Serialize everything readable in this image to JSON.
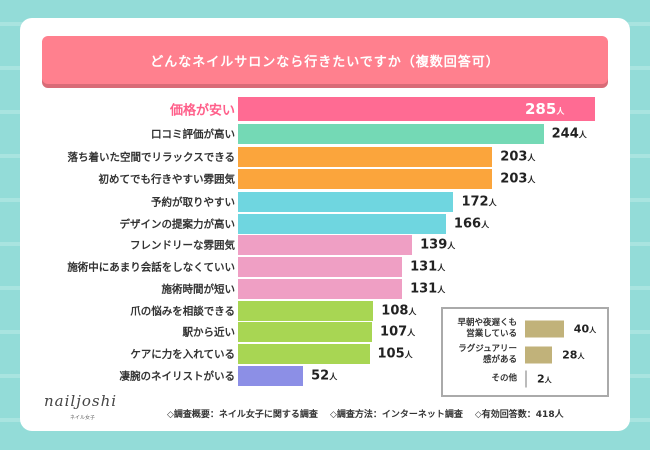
{
  "title": "どんなネイルサロンなら行きたいですか（複数回答可）",
  "unit": "人",
  "chart_data": {
    "type": "bar",
    "orientation": "horizontal",
    "title": "どんなネイルサロンなら行きたいですか（複数回答可）",
    "categories": [
      "価格が安い",
      "口コミ評価が高い",
      "落ち着いた空間でリラックスできる",
      "初めてでも行きやすい雰囲気",
      "予約が取りやすい",
      "デザインの提案力が高い",
      "フレンドリーな雰囲気",
      "施術中にあまり会話をしなくていい",
      "施術時間が短い",
      "爪の悩みを相談できる",
      "駅から近い",
      "ケアに力を入れている",
      "凄腕のネイリストがいる"
    ],
    "values": [
      285,
      244,
      203,
      203,
      172,
      166,
      139,
      131,
      131,
      108,
      107,
      105,
      52
    ],
    "colors": [
      "#ff6b93",
      "#74d9b5",
      "#fba53c",
      "#fba53c",
      "#6fd6e0",
      "#6fd6e0",
      "#ef9fc4",
      "#ef9fc4",
      "#ef9fc4",
      "#a8d653",
      "#a8d653",
      "#a8d653",
      "#8c8fe6"
    ],
    "inset": {
      "categories": [
        "早朝や夜遅くも\n営業している",
        "ラグジュアリー\n感がある",
        "その他"
      ],
      "values": [
        40,
        28,
        2
      ],
      "color": "#c1b27a"
    }
  },
  "footer": {
    "logo": "nailjoshi",
    "logo_sub": "ネイル女子",
    "items": [
      "◇調査概要：ネイル女子に関する調査",
      "◇調査方法：インターネット調査",
      "◇有効回答数：418人"
    ]
  }
}
